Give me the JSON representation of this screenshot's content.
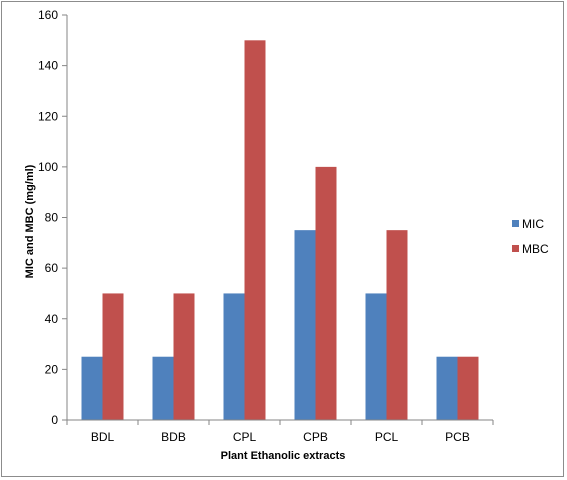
{
  "chart_data": {
    "type": "bar",
    "title": "",
    "xlabel": "Plant Ethanolic extracts",
    "ylabel": "MIC and MBC (mg/ml)",
    "categories": [
      "BDL",
      "BDB",
      "CPL",
      "CPB",
      "PCL",
      "PCB"
    ],
    "series": [
      {
        "name": "MIC",
        "color": "#4F81BD",
        "values": [
          25,
          25,
          50,
          75,
          50,
          25
        ]
      },
      {
        "name": "MBC",
        "color": "#C0504D",
        "values": [
          50,
          50,
          150,
          100,
          75,
          25
        ]
      }
    ],
    "ylim": [
      0,
      160
    ],
    "yticks": [
      0,
      20,
      40,
      60,
      80,
      100,
      120,
      140,
      160
    ],
    "grid": false,
    "legend_position": "right"
  }
}
